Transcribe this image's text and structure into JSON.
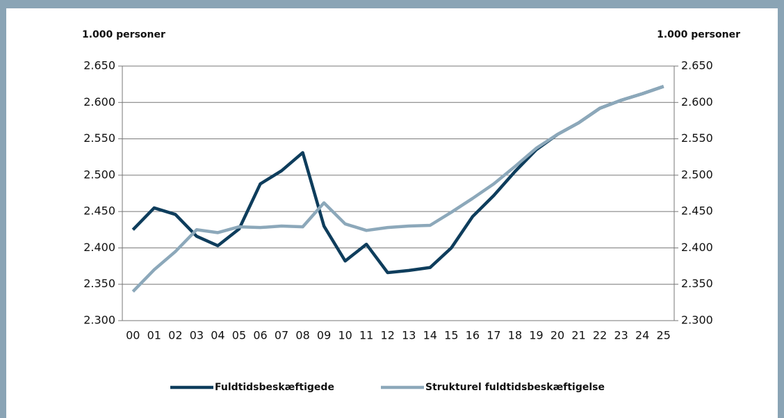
{
  "chart_data": {
    "type": "line",
    "y_axis_label": "1.000 personer",
    "y2_axis_label": "1.000 personer",
    "categories": [
      "00",
      "01",
      "02",
      "03",
      "04",
      "05",
      "06",
      "07",
      "08",
      "09",
      "10",
      "11",
      "12",
      "13",
      "14",
      "15",
      "16",
      "17",
      "18",
      "19",
      "20",
      "21",
      "22",
      "23",
      "24",
      "25"
    ],
    "series": [
      {
        "name": "Fuldtidsbeskæftigede",
        "color": "#0e3d5c",
        "values": [
          2425,
          2455,
          2446,
          2416,
          2403,
          2426,
          2488,
          2506,
          2531,
          2430,
          2382,
          2405,
          2366,
          2369,
          2373,
          2400,
          2443,
          2472,
          2505,
          2535,
          2556,
          2572,
          2592,
          2603,
          2612,
          2622
        ]
      },
      {
        "name": "Strukturel fuldtidsbeskæftigelse",
        "color": "#8ca8ba",
        "values": [
          2340,
          2370,
          2395,
          2425,
          2421,
          2429,
          2428,
          2430,
          2429,
          2462,
          2433,
          2424,
          2428,
          2430,
          2431,
          2449,
          2468,
          2488,
          2512,
          2537,
          2556,
          2572,
          2592,
          2603,
          2612,
          2622
        ]
      }
    ],
    "ylim": [
      2300,
      2650
    ],
    "yticks": [
      {
        "value": 2300,
        "label": "2.300"
      },
      {
        "value": 2350,
        "label": "2.350"
      },
      {
        "value": 2400,
        "label": "2.400"
      },
      {
        "value": 2450,
        "label": "2.450"
      },
      {
        "value": 2500,
        "label": "2.500"
      },
      {
        "value": 2550,
        "label": "2.550"
      },
      {
        "value": 2600,
        "label": "2.600"
      },
      {
        "value": 2650,
        "label": "2.650"
      }
    ],
    "y2lim": [
      2300,
      2650
    ],
    "y2ticks": [
      {
        "value": 2300,
        "label": "2.300"
      },
      {
        "value": 2350,
        "label": "2.350"
      },
      {
        "value": 2400,
        "label": "2.400"
      },
      {
        "value": 2450,
        "label": "2.450"
      },
      {
        "value": 2500,
        "label": "2.500"
      },
      {
        "value": 2550,
        "label": "2.550"
      },
      {
        "value": 2600,
        "label": "2.600"
      },
      {
        "value": 2650,
        "label": "2.650"
      }
    ],
    "grid": true,
    "legend": "bottom"
  }
}
